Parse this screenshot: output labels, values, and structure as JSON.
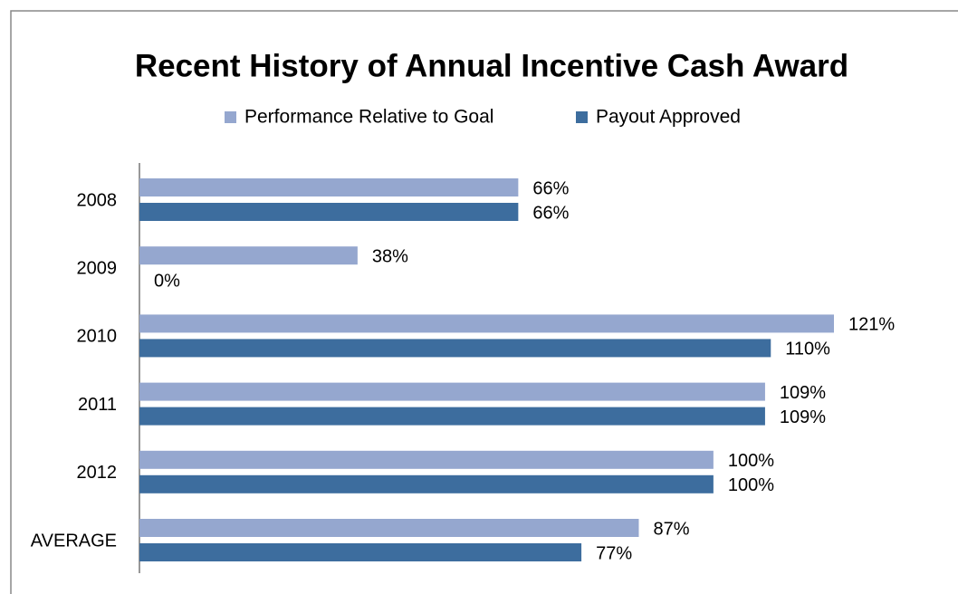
{
  "chart_data": {
    "type": "hbar",
    "title": "Recent History of Annual Incentive Cash Award",
    "categories": [
      "2008",
      "2009",
      "2010",
      "2011",
      "2012",
      "AVERAGE"
    ],
    "series": [
      {
        "name": "Performance Relative to Goal",
        "color": "#95a7cf",
        "values": [
          66,
          38,
          121,
          109,
          100,
          87
        ],
        "value_labels": [
          "66%",
          "38%",
          "121%",
          "109%",
          "100%",
          "87%"
        ]
      },
      {
        "name": "Payout Approved",
        "color": "#3d6d9e",
        "values": [
          66,
          0,
          110,
          109,
          100,
          77
        ],
        "value_labels": [
          "66%",
          "0%",
          "110%",
          "109%",
          "100%",
          "77%"
        ]
      }
    ]
  }
}
